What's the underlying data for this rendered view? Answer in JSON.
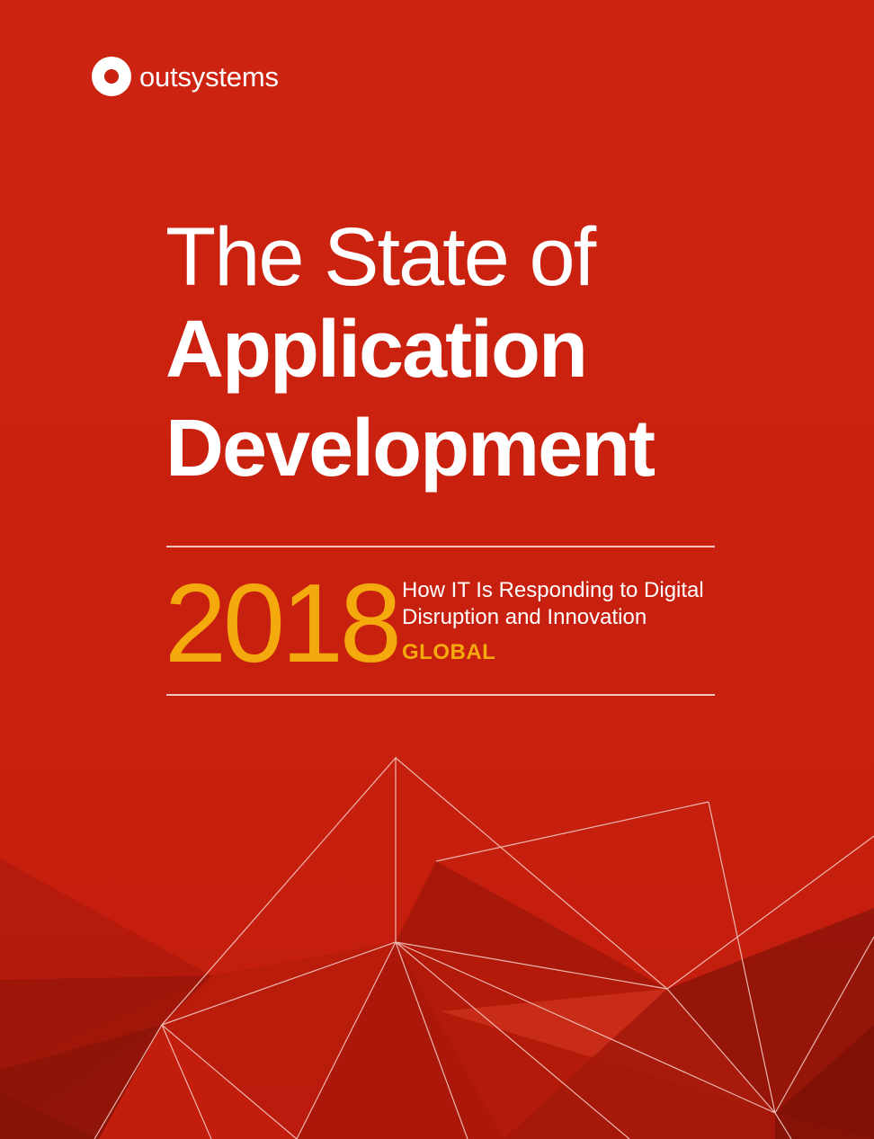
{
  "brand": {
    "name": "outsystems",
    "logo_icon": "outsystems-logo-icon"
  },
  "title": {
    "line1": "The State of",
    "line2": "Application",
    "line3": "Development"
  },
  "edition": {
    "year": "2018",
    "subtitle_line1": "How IT Is Responding to Digital",
    "subtitle_line2": "Disruption and Innovation",
    "region": "GLOBAL"
  },
  "colors": {
    "background": "#c9200f",
    "accent": "#f4a90c",
    "text": "#ffffff"
  }
}
